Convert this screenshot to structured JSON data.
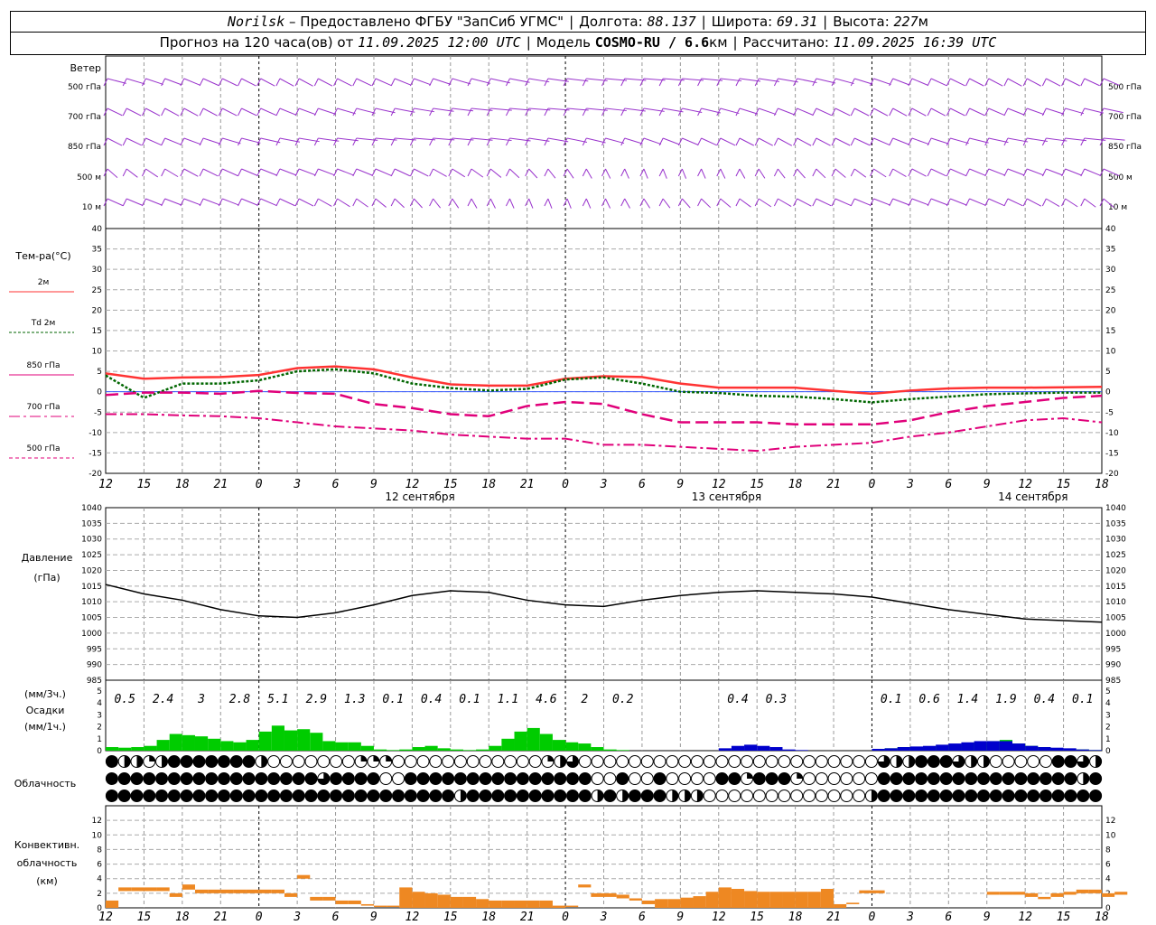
{
  "header": {
    "station": "Norilsk",
    "provider": "– Предоставлено ФГБУ \"ЗапСиб УГМС\"",
    "lon_label": "Долгота:",
    "lon": "88.137",
    "lat_label": "Широта:",
    "lat": "69.31",
    "alt_label": "Высота:",
    "alt": "227",
    "alt_unit": "м",
    "forecast_prefix": "Прогноз на 120 часа(ов) от",
    "forecast_start": "11.09.2025 12:00 UTC",
    "model_label": "Модель",
    "model": "COSMO-RU / 6.6",
    "model_unit": "км",
    "calc_label": "Рассчитано:",
    "calc_time": "11.09.2025 16:39 UTC"
  },
  "colors": {
    "t2m": "#ff3333",
    "td2m": "#006600",
    "t850": "#e0007a",
    "t700": "#e0007a",
    "t500": "#e0007a",
    "wind": "#9933cc",
    "precip_rain": "#00cc00",
    "precip_snow": "#0000cc",
    "convective": "#ee8822",
    "pressure": "#000000"
  },
  "wind_panel": {
    "title": "Ветер",
    "levels": [
      "500 гПа",
      "700 гПа",
      "850 гПа",
      "500 м",
      "10 м"
    ]
  },
  "chart_data": [
    {
      "type": "line",
      "name": "temperature",
      "title": "Тем-ра(°C)",
      "ylim": [
        -20,
        40
      ],
      "yticks": [
        -20,
        -15,
        -10,
        -5,
        0,
        5,
        10,
        15,
        20,
        25,
        30,
        35,
        40
      ],
      "legend": [
        {
          "label": "2м",
          "key": "t2m"
        },
        {
          "label": "Td 2м",
          "key": "td2m"
        },
        {
          "label": "850 гПа",
          "key": "t850"
        },
        {
          "label": "700 гПа",
          "key": "t700"
        },
        {
          "label": "500 гПа",
          "key": "t500"
        }
      ],
      "x_hours_from_start": [
        0,
        3,
        6,
        9,
        12,
        15,
        18,
        21,
        24,
        27,
        30,
        33,
        36,
        39,
        42,
        45,
        48,
        51,
        54,
        57,
        60,
        63,
        66,
        69,
        72,
        75,
        78
      ],
      "series": [
        {
          "name": "2м",
          "values": [
            4.5,
            3.2,
            3.5,
            3.6,
            4.1,
            5.8,
            6.2,
            5.5,
            3.5,
            1.8,
            1.5,
            1.5,
            3.2,
            3.8,
            3.6,
            2.0,
            1.0,
            1.0,
            1.0,
            0.2,
            -0.5,
            0.3,
            0.8,
            1.0,
            1.0,
            1.1,
            1.2
          ]
        },
        {
          "name": "Td 2м",
          "values": [
            4.0,
            -1.5,
            2.0,
            2.0,
            2.8,
            5.0,
            5.5,
            4.5,
            2.0,
            0.9,
            0.3,
            0.7,
            3.0,
            3.5,
            2.0,
            0.0,
            -0.3,
            -1.0,
            -1.2,
            -1.8,
            -2.6,
            -1.8,
            -1.2,
            -0.6,
            -0.4,
            -0.2,
            -0.2
          ]
        },
        {
          "name": "850 гПа",
          "values": [
            -0.8,
            -0.2,
            -0.2,
            -0.5,
            0.2,
            -0.3,
            -0.5,
            -3.0,
            -4.0,
            -5.5,
            -6.0,
            -3.5,
            -2.5,
            -3.0,
            -5.5,
            -7.5,
            -7.5,
            -7.5,
            -8.0,
            -8.0,
            -8.0,
            -7.0,
            -5.0,
            -3.5,
            -2.5,
            -1.5,
            -1.0
          ]
        },
        {
          "name": "700 гПа",
          "values": [
            -5.5,
            -5.5,
            -5.8,
            -6.0,
            -6.5,
            -7.5,
            -8.5,
            -9.0,
            -9.5,
            -10.5,
            -11.0,
            -11.5,
            -11.5,
            -13.0,
            -13.0,
            -13.5,
            -14.0,
            -14.5,
            -13.5,
            -13.0,
            -12.5,
            -11.0,
            -10.0,
            -8.5,
            -7.0,
            -6.5,
            -7.5
          ]
        }
      ]
    },
    {
      "type": "line",
      "name": "pressure",
      "title": "Давление",
      "ylabel": "(гПа)",
      "ylim": [
        985,
        1040
      ],
      "yticks": [
        985,
        990,
        995,
        1000,
        1005,
        1010,
        1015,
        1020,
        1025,
        1030,
        1035,
        1040
      ],
      "x_hours_from_start": [
        0,
        3,
        6,
        9,
        12,
        15,
        18,
        21,
        24,
        27,
        30,
        33,
        36,
        39,
        42,
        45,
        48,
        51,
        54,
        57,
        60,
        63,
        66,
        69,
        72,
        75,
        78
      ],
      "series": [
        {
          "name": "pressure",
          "values": [
            1015.5,
            1012.5,
            1010.5,
            1007.5,
            1005.5,
            1005.0,
            1006.5,
            1009.0,
            1012.0,
            1013.5,
            1013.0,
            1010.5,
            1009.0,
            1008.5,
            1010.5,
            1012.0,
            1013.0,
            1013.5,
            1013.0,
            1012.5,
            1011.5,
            1009.5,
            1007.5,
            1006.0,
            1004.5,
            1004.0,
            1003.5
          ]
        }
      ]
    },
    {
      "type": "bar",
      "name": "precipitation",
      "title": "Осадки",
      "ylabel_top": "(мм/3ч.)",
      "ylabel_bottom": "(мм/1ч.)",
      "ylim": [
        0,
        5
      ],
      "yticks": [
        0,
        1,
        2,
        3,
        4,
        5
      ],
      "labels_3h": [
        "0.5",
        "2.4",
        "3",
        "2.8",
        "5.1",
        "2.9",
        "1.3",
        "0.1",
        "0.4",
        "0.1",
        "1.1",
        "4.6",
        "2",
        "0.2",
        "",
        "",
        "0.4",
        "0.3",
        "",
        "",
        "0.1",
        "0.6",
        "1.4",
        "1.9",
        "0.4",
        "0.1"
      ],
      "label_hours": [
        1.5,
        4.5,
        7.5,
        10.5,
        13.5,
        16.5,
        19.5,
        22.5,
        25.5,
        28.5,
        31.5,
        34.5,
        37.5,
        40.5,
        43.5,
        46.5,
        49.5,
        52.5,
        55.5,
        58.5,
        61.5,
        64.5,
        67.5,
        70.5,
        73.5,
        76.5
      ],
      "rain_mm_per_h": [
        0.3,
        0.25,
        0.3,
        0.4,
        0.9,
        1.4,
        1.3,
        1.2,
        1.0,
        0.8,
        0.7,
        0.9,
        1.6,
        2.1,
        1.7,
        1.8,
        1.5,
        0.8,
        0.7,
        0.7,
        0.4,
        0.1,
        0.05,
        0.1,
        0.3,
        0.4,
        0.2,
        0.1,
        0.05,
        0.1,
        0.4,
        1.0,
        1.6,
        1.9,
        1.4,
        0.9,
        0.7,
        0.6,
        0.3,
        0.1,
        0.05,
        0.0,
        0.0,
        0.0,
        0.0,
        0.0,
        0.0,
        0.0,
        0.0,
        0.0,
        0.0,
        0.0,
        0.0,
        0.0,
        0.0,
        0.0,
        0.0,
        0.0,
        0.0,
        0.0,
        0.1,
        0.2,
        0.3,
        0.3,
        0.35,
        0.4,
        0.5,
        0.6,
        0.7,
        0.8,
        0.9,
        0.6,
        0.4,
        0.3,
        0.2,
        0.1,
        0.1,
        0.05
      ],
      "snow_mm_per_h": [
        0,
        0,
        0,
        0,
        0,
        0,
        0,
        0,
        0,
        0,
        0,
        0,
        0,
        0,
        0,
        0,
        0,
        0,
        0,
        0,
        0,
        0,
        0,
        0,
        0,
        0,
        0,
        0,
        0,
        0,
        0,
        0,
        0,
        0,
        0,
        0,
        0,
        0,
        0,
        0,
        0,
        0,
        0,
        0,
        0,
        0,
        0,
        0,
        0.2,
        0.4,
        0.5,
        0.4,
        0.3,
        0.1,
        0.05,
        0,
        0,
        0,
        0,
        0,
        0.15,
        0.2,
        0.3,
        0.35,
        0.4,
        0.5,
        0.6,
        0.7,
        0.8,
        0.8,
        0.8,
        0.6,
        0.4,
        0.3,
        0.25,
        0.2,
        0.1,
        0.05
      ]
    },
    {
      "type": "table",
      "name": "cloudiness",
      "title": "Облачность",
      "rows": [
        "high",
        "middle",
        "low"
      ],
      "cover_eighths": [
        [
          8,
          4,
          4,
          2,
          4,
          8,
          8,
          8,
          8,
          8,
          8,
          8,
          4,
          0,
          0,
          0,
          0,
          0,
          0,
          0,
          2,
          2,
          2,
          0,
          0,
          0,
          0,
          0,
          0,
          0,
          0,
          0,
          0,
          0,
          0,
          2,
          4,
          6,
          0,
          0,
          0,
          0,
          0,
          0,
          0,
          0,
          0,
          0,
          0,
          0,
          0,
          0,
          0,
          0,
          0,
          0,
          0,
          0,
          0,
          0,
          0,
          0,
          6,
          4,
          4,
          8,
          8,
          8,
          6,
          4,
          4,
          0,
          0,
          0,
          0,
          0,
          8,
          8,
          6,
          4
        ],
        [
          8,
          8,
          8,
          8,
          8,
          8,
          8,
          8,
          8,
          8,
          8,
          8,
          8,
          8,
          8,
          8,
          8,
          6,
          8,
          8,
          8,
          8,
          0,
          0,
          8,
          8,
          8,
          8,
          8,
          8,
          8,
          8,
          8,
          8,
          8,
          8,
          8,
          8,
          8,
          0,
          0,
          8,
          0,
          0,
          8,
          0,
          0,
          0,
          0,
          8,
          8,
          2,
          8,
          8,
          8,
          2,
          0,
          0,
          0,
          0,
          0,
          0,
          8,
          8,
          8,
          8,
          8,
          8,
          8,
          8,
          8,
          8,
          8,
          8,
          8,
          8,
          8,
          8,
          4,
          8
        ],
        [
          8,
          8,
          8,
          8,
          8,
          8,
          8,
          8,
          8,
          8,
          8,
          8,
          8,
          8,
          8,
          8,
          8,
          8,
          8,
          8,
          8,
          8,
          8,
          8,
          8,
          8,
          8,
          8,
          4,
          8,
          8,
          8,
          8,
          8,
          8,
          8,
          8,
          8,
          8,
          4,
          8,
          4,
          8,
          8,
          8,
          4,
          4,
          4,
          0,
          0,
          0,
          0,
          0,
          0,
          0,
          0,
          0,
          0,
          0,
          0,
          0,
          4,
          8,
          8,
          8,
          8,
          8,
          8,
          8,
          8,
          8,
          8,
          8,
          8,
          8,
          8,
          8,
          8,
          8,
          8
        ]
      ]
    },
    {
      "type": "bar",
      "name": "convective_cloud",
      "title": "Конвективн.",
      "title2": "облачность",
      "ylabel": "(км)",
      "ylim": [
        0,
        14
      ],
      "yticks": [
        0,
        2,
        4,
        6,
        8,
        10,
        12
      ],
      "segments_bottom_top_km": [
        [
          0,
          1.0
        ],
        [
          2.3,
          2.8
        ],
        [
          2.3,
          2.8
        ],
        [
          2.3,
          2.8
        ],
        [
          2.3,
          2.8
        ],
        [
          1.5,
          2.0
        ],
        [
          2.5,
          3.2
        ],
        [
          2.0,
          2.5
        ],
        [
          2.0,
          2.5
        ],
        [
          2.0,
          2.5
        ],
        [
          2.0,
          2.5
        ],
        [
          2.0,
          2.5
        ],
        [
          2.0,
          2.5
        ],
        [
          2.0,
          2.5
        ],
        [
          1.5,
          2.0
        ],
        [
          4.0,
          4.5
        ],
        [
          1.0,
          1.5
        ],
        [
          1.0,
          1.5
        ],
        [
          0.5,
          1.0
        ],
        [
          0.5,
          1.0
        ],
        [
          0.3,
          0.5
        ],
        [
          0.2,
          0.3
        ],
        [
          0.2,
          0.3
        ],
        [
          0.0,
          2.8
        ],
        [
          0.0,
          2.2
        ],
        [
          0.0,
          2.0
        ],
        [
          0.0,
          1.8
        ],
        [
          0.0,
          1.5
        ],
        [
          0.0,
          1.5
        ],
        [
          0.0,
          1.2
        ],
        [
          0.0,
          1.0
        ],
        [
          0.0,
          1.0
        ],
        [
          0.0,
          1.0
        ],
        [
          0.0,
          1.0
        ],
        [
          0.0,
          1.0
        ],
        [
          0.0,
          0.3
        ],
        [
          0.2,
          0.3
        ],
        [
          2.8,
          3.2
        ],
        [
          1.5,
          2.0
        ],
        [
          1.5,
          2.0
        ],
        [
          1.3,
          1.8
        ],
        [
          1.0,
          1.3
        ],
        [
          0.5,
          1.0
        ],
        [
          0.0,
          1.2
        ],
        [
          0.0,
          1.2
        ],
        [
          0.0,
          1.4
        ],
        [
          0.0,
          1.6
        ],
        [
          0.0,
          2.2
        ],
        [
          0.0,
          2.8
        ],
        [
          0.0,
          2.6
        ],
        [
          0.0,
          2.3
        ],
        [
          0.0,
          2.2
        ],
        [
          0.0,
          2.2
        ],
        [
          0.0,
          2.2
        ],
        [
          0.0,
          2.2
        ],
        [
          0.0,
          2.2
        ],
        [
          0.0,
          2.6
        ],
        [
          0.0,
          0.5
        ],
        [
          0.5,
          0.7
        ],
        [
          2.0,
          2.4
        ],
        [
          2.0,
          2.4
        ],
        [
          0,
          0
        ],
        [
          0,
          0
        ],
        [
          0,
          0
        ],
        [
          0,
          0
        ],
        [
          0,
          0
        ],
        [
          0,
          0
        ],
        [
          0,
          0
        ],
        [
          0,
          0
        ],
        [
          1.8,
          2.2
        ],
        [
          1.8,
          2.2
        ],
        [
          1.8,
          2.2
        ],
        [
          1.5,
          2.0
        ],
        [
          1.2,
          1.5
        ],
        [
          1.5,
          2.0
        ],
        [
          1.8,
          2.2
        ],
        [
          2.0,
          2.5
        ],
        [
          2.0,
          2.5
        ],
        [
          1.5,
          2.0
        ],
        [
          1.8,
          2.2
        ]
      ]
    }
  ],
  "time_axis": {
    "hour_labels": [
      "12",
      "15",
      "18",
      "21",
      "0",
      "3",
      "6",
      "9",
      "12",
      "15",
      "18",
      "21",
      "0",
      "3",
      "6",
      "9",
      "12",
      "15",
      "18",
      "21",
      "0",
      "3",
      "6",
      "9",
      "12",
      "15",
      "18"
    ],
    "date_labels": [
      {
        "text": "12 сентября",
        "hour": 24
      },
      {
        "text": "13 сентября",
        "hour": 48
      },
      {
        "text": "14 сентября",
        "hour": 72
      }
    ]
  }
}
